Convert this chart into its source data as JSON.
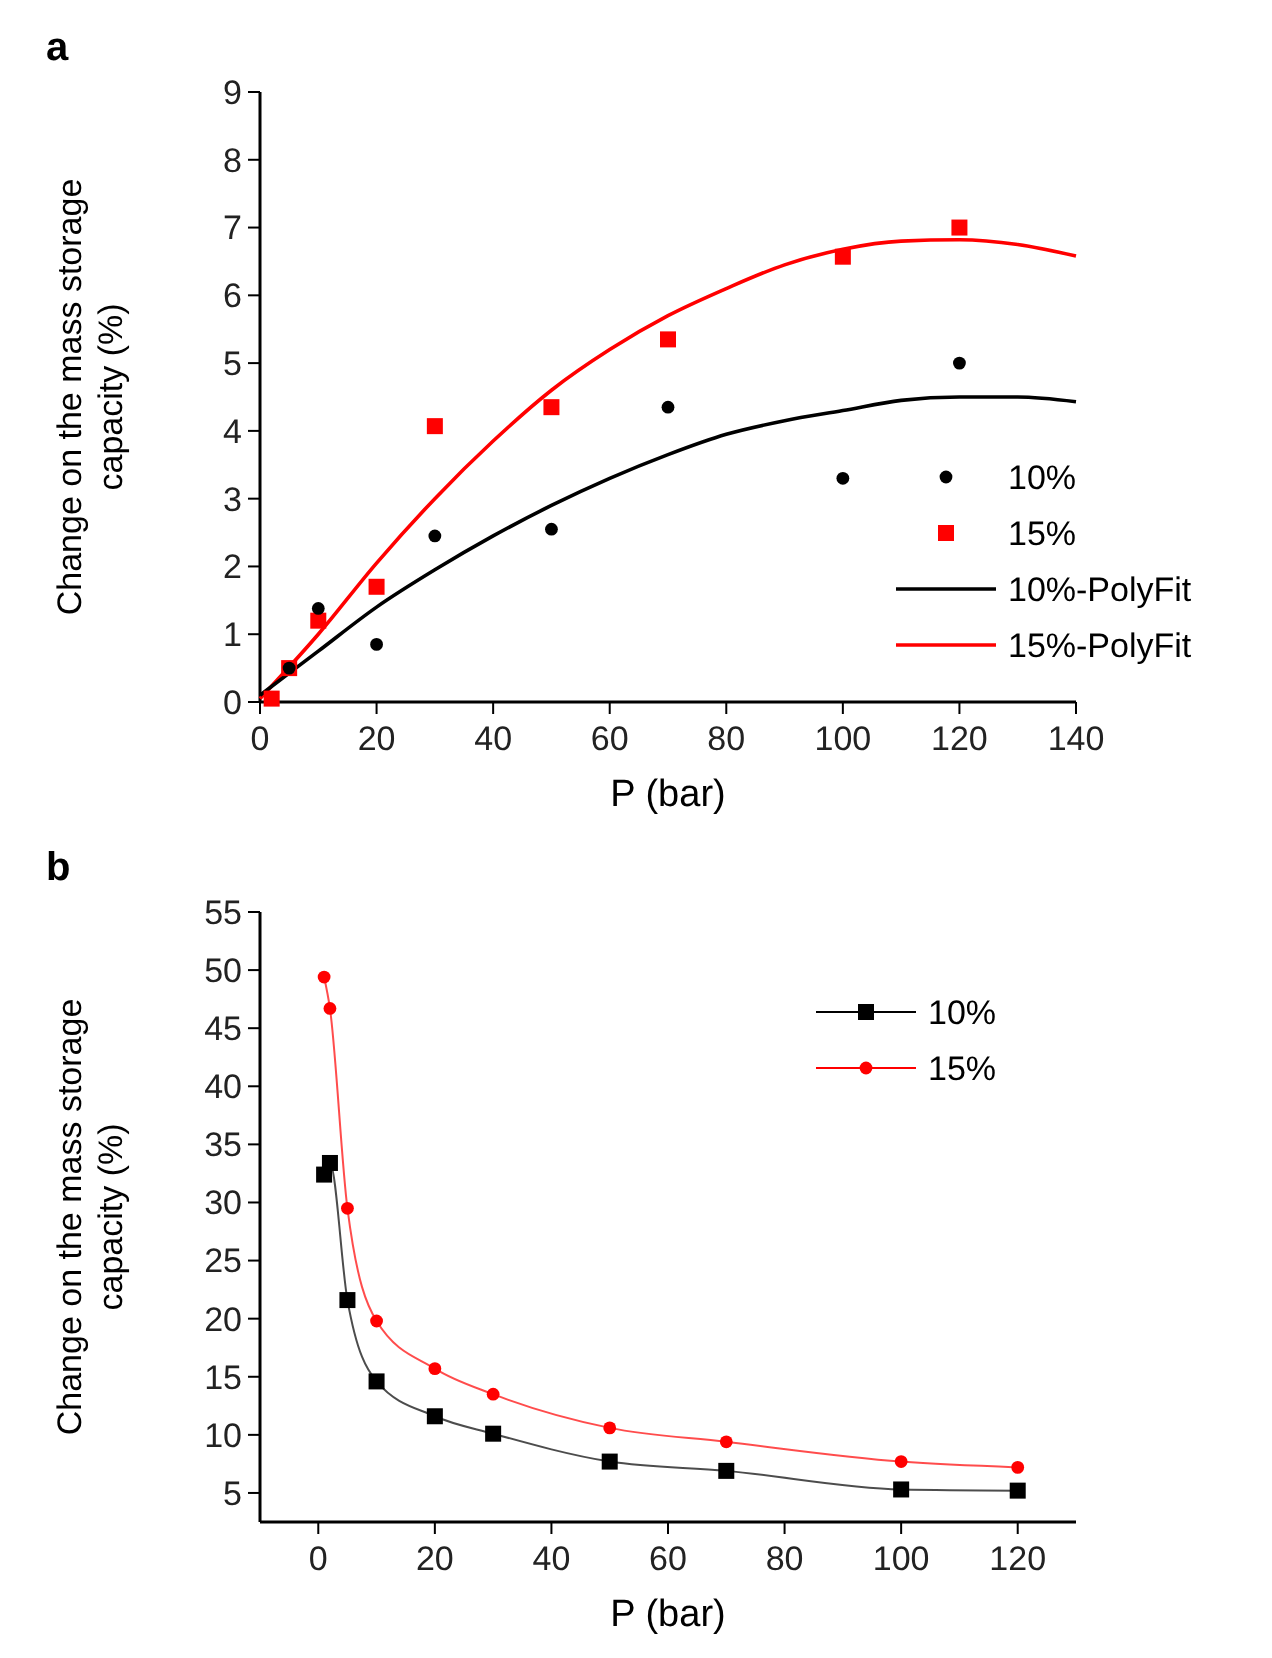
{
  "chart_data": [
    {
      "type": "scatter",
      "title": "a",
      "xlabel": "P (bar)",
      "ylabel": "Change on the mass storage capacity (%)",
      "xlim": [
        0,
        140
      ],
      "xticks": [
        0,
        20,
        40,
        60,
        80,
        100,
        120,
        140
      ],
      "ylim": [
        0,
        9
      ],
      "yticks": [
        0,
        1,
        2,
        3,
        4,
        5,
        6,
        7,
        8,
        9
      ],
      "grid": false,
      "legend": "right",
      "series": [
        {
          "name": "10%",
          "marker": "circle",
          "color": "#000000",
          "x": [
            5,
            10,
            20,
            30,
            50,
            70,
            100,
            120
          ],
          "values": [
            0.5,
            1.38,
            0.85,
            2.45,
            2.55,
            4.35,
            3.3,
            5.0
          ]
        },
        {
          "name": "15%",
          "marker": "square",
          "color": "#ff0000",
          "x": [
            2,
            5,
            10,
            20,
            30,
            50,
            70,
            100,
            120
          ],
          "values": [
            0.05,
            0.5,
            1.2,
            1.7,
            4.07,
            4.35,
            5.35,
            6.57,
            7.0
          ]
        },
        {
          "name": "10%-PolyFit",
          "type": "line",
          "marker": "none",
          "color": "#000000",
          "x": [
            0,
            10,
            20,
            30,
            40,
            50,
            60,
            70,
            80,
            90,
            100,
            110,
            120,
            130,
            140
          ],
          "values": [
            0.1,
            0.75,
            1.4,
            1.95,
            2.45,
            2.9,
            3.3,
            3.65,
            3.95,
            4.15,
            4.3,
            4.45,
            4.5,
            4.5,
            4.43
          ]
        },
        {
          "name": "15%-PolyFit",
          "type": "line",
          "marker": "none",
          "color": "#ff0000",
          "x": [
            0,
            10,
            20,
            30,
            40,
            50,
            60,
            70,
            80,
            90,
            100,
            110,
            120,
            130,
            140
          ],
          "values": [
            0.05,
            1.0,
            2.05,
            3.0,
            3.85,
            4.6,
            5.2,
            5.7,
            6.1,
            6.45,
            6.68,
            6.8,
            6.82,
            6.75,
            6.58
          ]
        }
      ]
    },
    {
      "type": "line",
      "title": "b",
      "xlabel": "P (bar)",
      "ylabel": "Change on the mass storage capacity (%)",
      "xlim": [
        -10,
        130
      ],
      "xticks": [
        0,
        20,
        40,
        60,
        80,
        100,
        120
      ],
      "ylim": [
        2.5,
        55
      ],
      "yticks": [
        5,
        10,
        15,
        20,
        25,
        30,
        35,
        40,
        45,
        50,
        55
      ],
      "grid": false,
      "legend": "top right",
      "series": [
        {
          "name": "10%",
          "marker": "square",
          "color": "#000000",
          "x": [
            1,
            2,
            5,
            10,
            20,
            30,
            50,
            70,
            100,
            120
          ],
          "values": [
            32.4,
            33.4,
            21.6,
            14.6,
            11.6,
            10.1,
            7.7,
            6.9,
            5.3,
            5.2
          ]
        },
        {
          "name": "15%",
          "marker": "circle",
          "color": "#ff0000",
          "x": [
            1,
            2,
            5,
            10,
            20,
            30,
            50,
            70,
            100,
            120
          ],
          "values": [
            49.4,
            46.7,
            29.5,
            19.8,
            15.7,
            13.5,
            10.6,
            9.4,
            7.7,
            7.2
          ]
        }
      ]
    }
  ]
}
